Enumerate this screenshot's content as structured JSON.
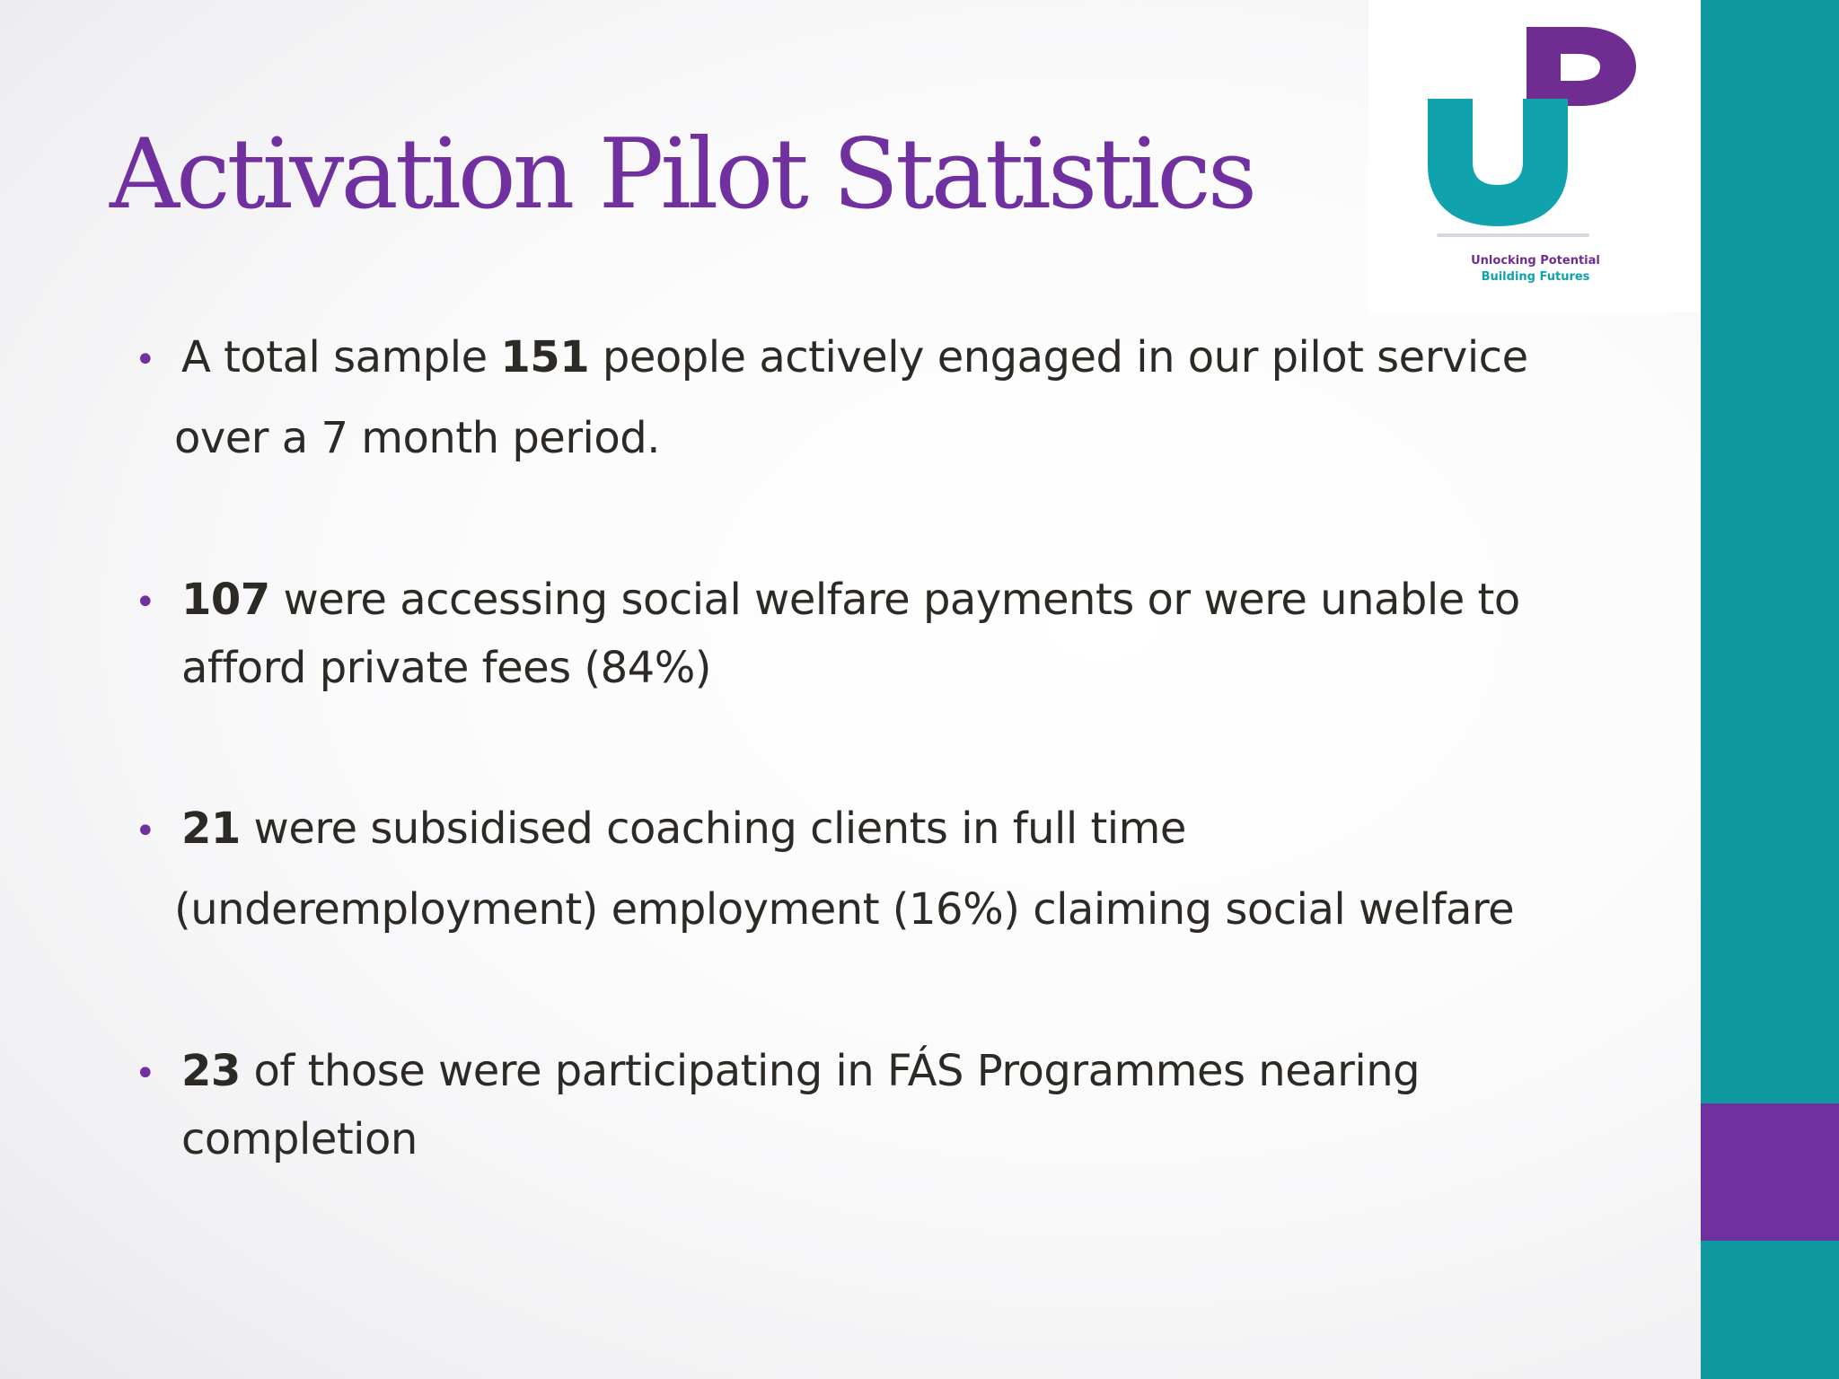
{
  "colors": {
    "title": "#7030a0",
    "teal": "#0e9aa0",
    "purple": "#7030a0",
    "bullet": "#7030a0",
    "body_text": "#2d2a26",
    "logo_teal": "#11a3ad",
    "logo_purple": "#6f2c91"
  },
  "title": "Activation Pilot Statistics",
  "logo": {
    "letters": "UP",
    "tagline_line1": "Unlocking Potential",
    "tagline_line2": "Building Futures"
  },
  "bullets": [
    {
      "bold": "151",
      "line1_before": "A total sample ",
      "line1_after": " people actively engaged in our pilot service",
      "line2": "over a 7 month period."
    },
    {
      "bold": "107",
      "line1_after": " were accessing social welfare payments or were unable to",
      "line2": "afford private fees (84%)"
    },
    {
      "bold": "21",
      "line1_after": " were subsidised coaching clients in full time",
      "line2": "(underemployment) employment (16%) claiming social welfare"
    },
    {
      "bold": "23",
      "line1_after": " of those were participating in FÁS Programmes nearing",
      "line2": "completion"
    }
  ]
}
